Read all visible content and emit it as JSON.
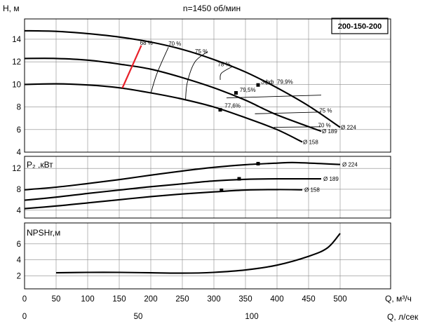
{
  "chart_data": {
    "type": "line",
    "title": "n=1450 об/мин",
    "model": "200-150-200",
    "x_label_m3h": "Q, м³/ч",
    "x_label_ls": "Q, л/сек",
    "x_ticks_m3h": [
      "0",
      "50",
      "100",
      "150",
      "200",
      "250",
      "300",
      "350",
      "400",
      "450",
      "500"
    ],
    "x_ticks_ls": [
      "0",
      "50",
      "100"
    ],
    "xlim_m3h": [
      0,
      580
    ],
    "panels": [
      {
        "id": "head",
        "ylabel": "H, м",
        "ylim": [
          4,
          15.8
        ],
        "y_ticks": [
          "4",
          "6",
          "8",
          "10",
          "12",
          "14"
        ],
        "series": [
          {
            "name": "Ø 224",
            "points": [
              [
                0,
                14.75
              ],
              [
                50,
                14.7
              ],
              [
                100,
                14.5
              ],
              [
                150,
                14.2
              ],
              [
                200,
                13.75
              ],
              [
                250,
                13.1
              ],
              [
                300,
                12.2
              ],
              [
                350,
                11.1
              ],
              [
                400,
                9.7
              ],
              [
                450,
                8.1
              ],
              [
                500,
                6.2
              ]
            ]
          },
          {
            "name": "Ø 189",
            "points": [
              [
                0,
                12.3
              ],
              [
                50,
                12.3
              ],
              [
                100,
                12.15
              ],
              [
                150,
                11.8
              ],
              [
                200,
                11.35
              ],
              [
                250,
                10.6
              ],
              [
                300,
                9.7
              ],
              [
                350,
                8.6
              ],
              [
                400,
                7.3
              ],
              [
                470,
                5.85
              ]
            ]
          },
          {
            "name": "Ø 158",
            "points": [
              [
                0,
                10.0
              ],
              [
                50,
                10.05
              ],
              [
                100,
                9.95
              ],
              [
                150,
                9.7
              ],
              [
                200,
                9.25
              ],
              [
                250,
                8.7
              ],
              [
                300,
                8.0
              ],
              [
                350,
                7.05
              ],
              [
                400,
                6.0
              ],
              [
                440,
                4.9
              ]
            ]
          }
        ],
        "efficiency_labels": [
          "68 %",
          "70 %",
          "75 %",
          "78 %",
          "79,5%",
          "77,6%",
          "Эфф",
          "79,9%",
          "75 %",
          "70 %"
        ],
        "efficiency_arcs": [
          {
            "label": "68 %",
            "points": [
              [
                155,
                9.68
              ],
              [
                185,
                13.45
              ]
            ]
          },
          {
            "label": "70 %",
            "points": [
              [
                200,
                9.2
              ],
              [
                210,
                11.0
              ],
              [
                228,
                13.3
              ]
            ]
          },
          {
            "label": "75 %",
            "points": [
              [
                255,
                8.6
              ],
              [
                258,
                10.2
              ],
              [
                270,
                12.0
              ],
              [
                290,
                12.9
              ]
            ]
          },
          {
            "label": "78 %",
            "points": [
              [
                310,
                10.4
              ],
              [
                312,
                11.0
              ],
              [
                330,
                11.6
              ]
            ]
          }
        ]
      },
      {
        "id": "power",
        "ylabel": "P₂ ,кВт",
        "ylim": [
          2.5,
          14.3
        ],
        "y_ticks": [
          "4",
          "8",
          "12"
        ],
        "series": [
          {
            "name": "Ø 224",
            "points": [
              [
                0,
                7.9
              ],
              [
                50,
                8.4
              ],
              [
                100,
                9.1
              ],
              [
                150,
                9.85
              ],
              [
                200,
                10.7
              ],
              [
                250,
                11.5
              ],
              [
                300,
                12.2
              ],
              [
                350,
                12.7
              ],
              [
                400,
                13.0
              ],
              [
                430,
                13.1
              ],
              [
                500,
                12.75
              ]
            ]
          },
          {
            "name": "Ø 189",
            "points": [
              [
                0,
                5.9
              ],
              [
                50,
                6.5
              ],
              [
                100,
                7.2
              ],
              [
                150,
                7.85
              ],
              [
                200,
                8.5
              ],
              [
                250,
                9.05
              ],
              [
                300,
                9.6
              ],
              [
                350,
                9.9
              ],
              [
                400,
                10.0
              ],
              [
                470,
                10.0
              ]
            ]
          },
          {
            "name": "Ø 158",
            "points": [
              [
                0,
                4.3
              ],
              [
                50,
                4.8
              ],
              [
                100,
                5.4
              ],
              [
                150,
                6.0
              ],
              [
                200,
                6.6
              ],
              [
                250,
                7.1
              ],
              [
                300,
                7.5
              ],
              [
                350,
                7.85
              ],
              [
                400,
                7.95
              ],
              [
                440,
                7.9
              ]
            ]
          }
        ],
        "markers": [
          [
            370,
            12.9
          ],
          [
            340,
            10.0
          ],
          [
            312,
            7.8
          ]
        ]
      },
      {
        "id": "npsh",
        "ylabel": "NPSHr,м",
        "ylim": [
          0.4,
          8.6
        ],
        "y_ticks": [
          "2",
          "4",
          "6"
        ],
        "series": [
          {
            "name": "NPSHr",
            "points": [
              [
                50,
                2.4
              ],
              [
                100,
                2.45
              ],
              [
                150,
                2.45
              ],
              [
                200,
                2.4
              ],
              [
                250,
                2.35
              ],
              [
                300,
                2.45
              ],
              [
                350,
                2.75
              ],
              [
                400,
                3.35
              ],
              [
                450,
                4.45
              ],
              [
                480,
                5.5
              ],
              [
                500,
                7.3
              ]
            ]
          }
        ]
      }
    ]
  }
}
